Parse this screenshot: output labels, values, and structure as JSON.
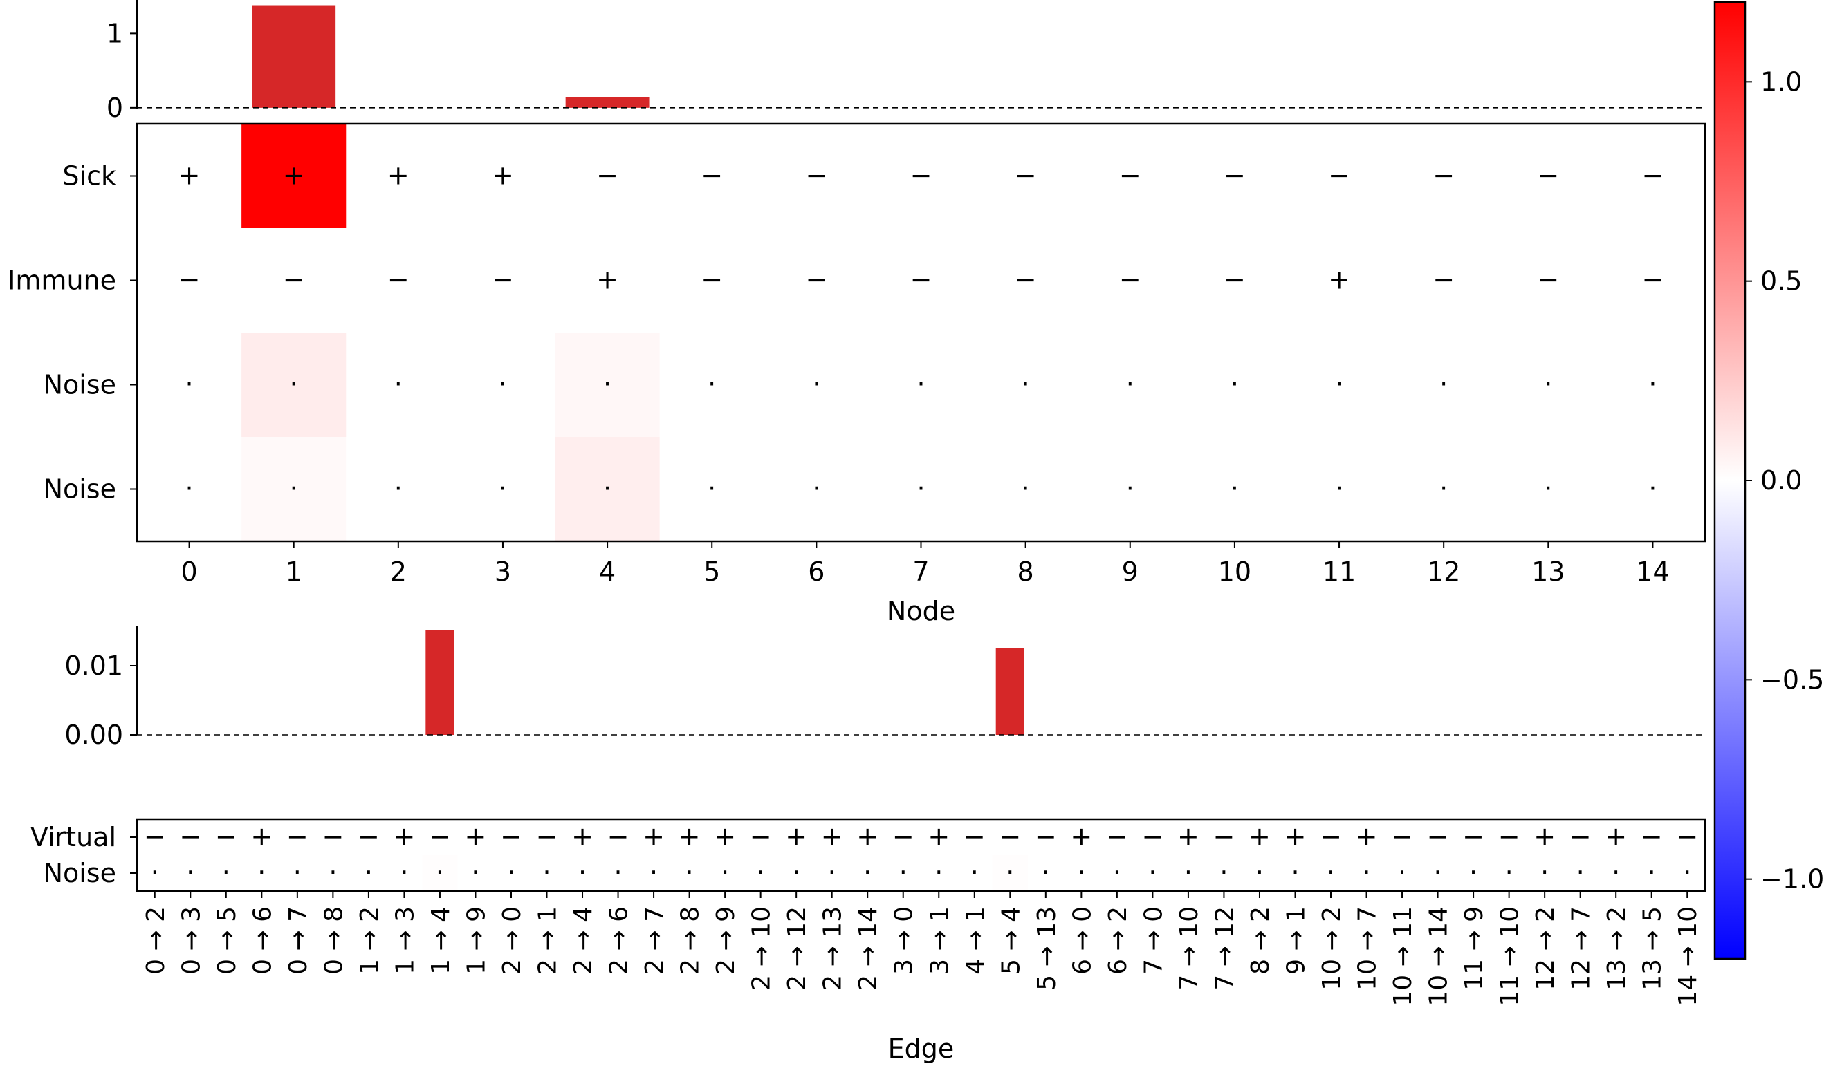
{
  "chart_data": [
    {
      "type": "bar",
      "panel": "node-importance",
      "categories": [
        "0",
        "1",
        "2",
        "3",
        "4",
        "5",
        "6",
        "7",
        "8",
        "9",
        "10",
        "11",
        "12",
        "13",
        "14"
      ],
      "values": [
        0,
        1.38,
        0,
        0,
        0.14,
        0,
        0,
        0,
        0,
        0,
        0,
        0,
        0,
        0,
        0
      ],
      "color": "#d62728",
      "ylim": [
        -0.02,
        1.45
      ],
      "yticks": [
        "0",
        "1"
      ],
      "ytick_values": [
        0,
        1
      ],
      "baseline": "dashed at 0"
    },
    {
      "type": "heatmap",
      "panel": "node-features",
      "xlabel": "Node",
      "xticks": [
        "0",
        "1",
        "2",
        "3",
        "4",
        "5",
        "6",
        "7",
        "8",
        "9",
        "10",
        "11",
        "12",
        "13",
        "14"
      ],
      "rows": [
        "Sick",
        "Immune",
        "Noise",
        "Noise"
      ],
      "values": [
        [
          0,
          1.2,
          0,
          0,
          0,
          0,
          0,
          0,
          0,
          0,
          0,
          0,
          0,
          0,
          0
        ],
        [
          0,
          0,
          0,
          0,
          0,
          0,
          0,
          0,
          0,
          0,
          0,
          0,
          0,
          0,
          0
        ],
        [
          0,
          0.09,
          0,
          0,
          0.04,
          0,
          0,
          0,
          0,
          0,
          0,
          0,
          0,
          0,
          0
        ],
        [
          0,
          0.03,
          0,
          0,
          0.08,
          0,
          0,
          0,
          0,
          0,
          0,
          0,
          0,
          0,
          0
        ]
      ],
      "symbols": [
        [
          "+",
          "+",
          "+",
          "+",
          "−",
          "−",
          "−",
          "−",
          "−",
          "−",
          "−",
          "−",
          "−",
          "−",
          "−"
        ],
        [
          "−",
          "−",
          "−",
          "−",
          "+",
          "−",
          "−",
          "−",
          "−",
          "−",
          "−",
          "+",
          "−",
          "−",
          "−"
        ],
        [
          "·",
          "·",
          "·",
          "·",
          "·",
          "·",
          "·",
          "·",
          "·",
          "·",
          "·",
          "·",
          "·",
          "·",
          "·"
        ],
        [
          "·",
          "·",
          "·",
          "·",
          "·",
          "·",
          "·",
          "·",
          "·",
          "·",
          "·",
          "·",
          "·",
          "·",
          "·"
        ]
      ]
    },
    {
      "type": "bar",
      "panel": "edge-importance",
      "categories": [
        "0 → 2",
        "0 → 3",
        "0 → 5",
        "0 → 6",
        "0 → 7",
        "0 → 8",
        "1 → 2",
        "1 → 3",
        "1 → 4",
        "1 → 9",
        "2 → 0",
        "2 → 1",
        "2 → 4",
        "2 → 6",
        "2 → 7",
        "2 → 8",
        "2 → 9",
        "2 → 10",
        "2 → 12",
        "2 → 13",
        "2 → 14",
        "3 → 0",
        "3 → 1",
        "4 → 1",
        "5 → 4",
        "5 → 13",
        "6 → 0",
        "6 → 2",
        "7 → 0",
        "7 → 10",
        "7 → 12",
        "8 → 2",
        "9 → 1",
        "10 → 2",
        "10 → 7",
        "10 → 11",
        "10 → 14",
        "11 → 9",
        "11 → 10",
        "12 → 2",
        "12 → 7",
        "13 → 2",
        "13 → 5",
        "14 → 10"
      ],
      "values": [
        0,
        0,
        0,
        0,
        0,
        0,
        0,
        0,
        0.0151,
        0,
        0,
        0,
        0,
        0,
        0,
        0,
        0,
        0,
        0,
        0,
        0,
        0,
        0,
        0,
        0.0125,
        0,
        0,
        0,
        0,
        0,
        0,
        0,
        0,
        0,
        0,
        0,
        0,
        0,
        0,
        0,
        0,
        0,
        0,
        0
      ],
      "color": "#d62728",
      "ylim": [
        -0.0002,
        0.0158
      ],
      "yticks": [
        "0.00",
        "0.01"
      ],
      "ytick_values": [
        0,
        0.01
      ],
      "baseline": "dashed at 0"
    },
    {
      "type": "heatmap",
      "panel": "edge-features",
      "xlabel": "Edge",
      "rows": [
        "Virtual",
        "Noise"
      ],
      "values": [
        [
          0,
          0,
          0,
          0,
          0,
          0,
          0,
          0,
          0,
          0,
          0,
          0,
          0,
          0,
          0,
          0,
          0,
          0,
          0,
          0,
          0,
          0,
          0,
          0,
          0,
          0,
          0,
          0,
          0,
          0,
          0,
          0,
          0,
          0,
          0,
          0,
          0,
          0,
          0,
          0,
          0,
          0,
          0,
          0
        ],
        [
          0,
          0,
          0,
          0,
          0,
          0,
          0,
          0,
          0.01,
          0,
          0,
          0,
          0,
          0,
          0,
          0,
          0,
          0,
          0,
          0,
          0,
          0,
          0,
          0,
          0.01,
          0,
          0,
          0,
          0,
          0,
          0,
          0,
          0,
          0,
          0,
          0,
          0,
          0,
          0,
          0,
          0,
          0,
          0,
          0
        ]
      ],
      "symbols": [
        [
          "−",
          "−",
          "−",
          "+",
          "−",
          "−",
          "−",
          "+",
          "−",
          "+",
          "−",
          "−",
          "+",
          "−",
          "+",
          "+",
          "+",
          "−",
          "+",
          "+",
          "+",
          "−",
          "+",
          "−",
          "−",
          "−",
          "+",
          "−",
          "−",
          "+",
          "−",
          "+",
          "+",
          "−",
          "+",
          "−",
          "−",
          "−",
          "−",
          "+",
          "−",
          "+",
          "−",
          "−"
        ],
        [
          "·",
          "·",
          "·",
          "·",
          "·",
          "·",
          "·",
          "·",
          "·",
          "·",
          "·",
          "·",
          "·",
          "·",
          "·",
          "·",
          "·",
          "·",
          "·",
          "·",
          "·",
          "·",
          "·",
          "·",
          "·",
          "·",
          "·",
          "·",
          "·",
          "·",
          "·",
          "·",
          "·",
          "·",
          "·",
          "·",
          "·",
          "·",
          "·",
          "·",
          "·",
          "·",
          "·",
          "·"
        ]
      ]
    },
    {
      "type": "colorbar",
      "panel": "colorbar",
      "colormap": "bwr",
      "range": [
        -1.2,
        1.2
      ],
      "ticks": [
        "−1.0",
        "−0.5",
        "0.0",
        "0.5",
        "1.0"
      ],
      "tick_values": [
        -1.0,
        -0.5,
        0.0,
        0.5,
        1.0
      ]
    }
  ]
}
